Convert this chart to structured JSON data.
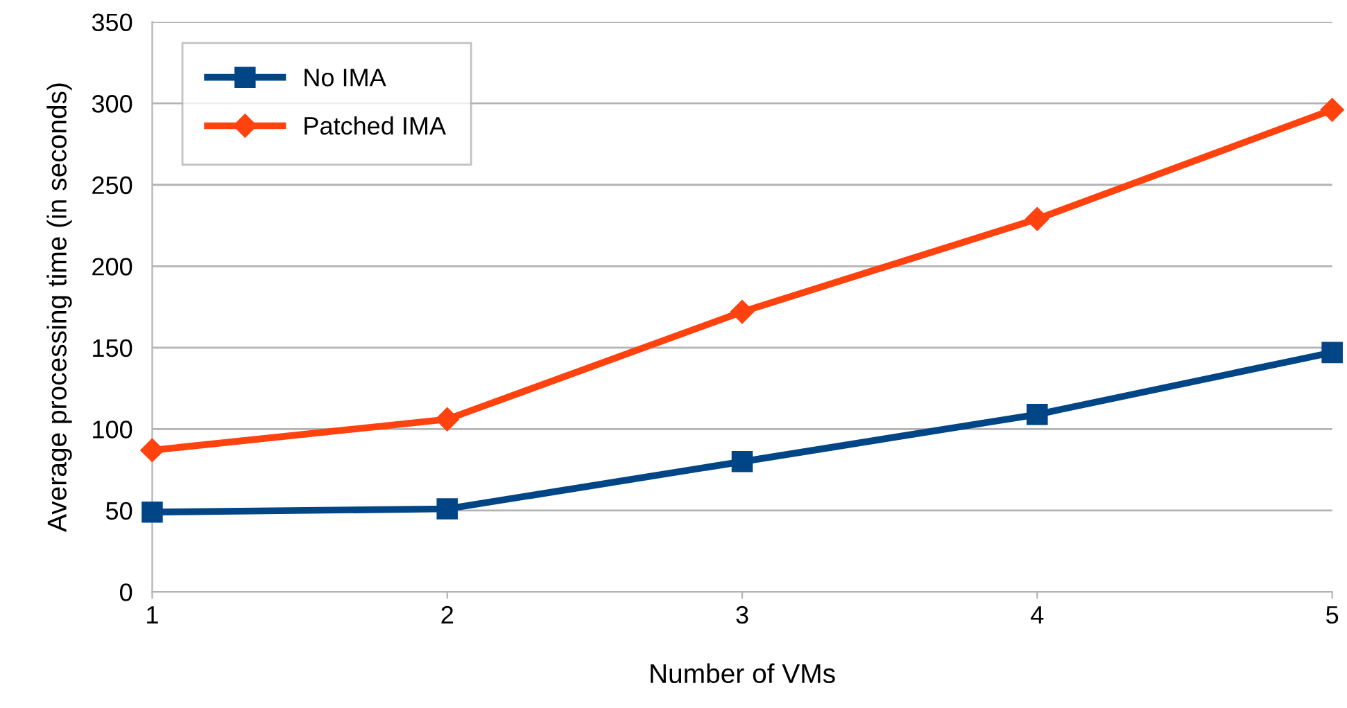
{
  "chart_data": {
    "type": "line",
    "xlabel": "Number of VMs",
    "ylabel": "Average processing time (in seconds)",
    "x": [
      1,
      2,
      3,
      4,
      5
    ],
    "series": [
      {
        "name": "No IMA",
        "color": "#004586",
        "marker": "square",
        "values": [
          49,
          51,
          80,
          109,
          147
        ]
      },
      {
        "name": "Patched IMA",
        "color": "#ff420e",
        "marker": "diamond",
        "values": [
          87,
          106,
          172,
          229,
          296
        ]
      }
    ],
    "xlim": [
      1,
      5
    ],
    "xticks": [
      1,
      2,
      3,
      4,
      5
    ],
    "ylim": [
      0,
      350
    ],
    "yticks": [
      0,
      50,
      100,
      150,
      200,
      250,
      300,
      350
    ],
    "grid": "y",
    "legend": "top left",
    "line_style": "solid"
  }
}
